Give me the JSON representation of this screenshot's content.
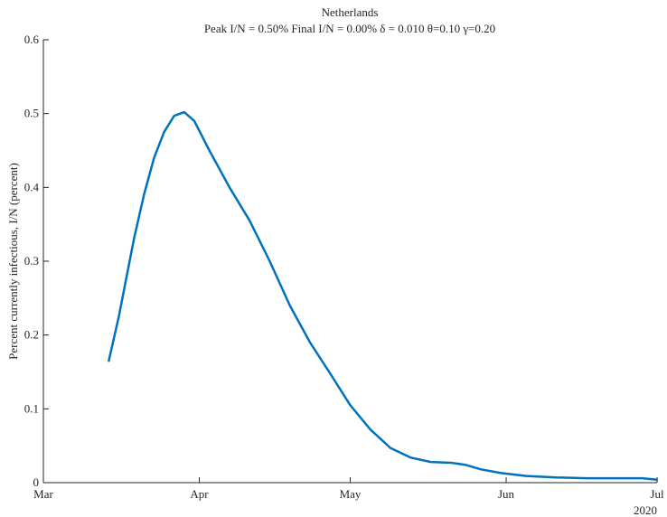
{
  "chart_data": {
    "type": "line",
    "title": "Netherlands",
    "subtitle": "Peak I/N =  0.50%   Final I/N =  0.00%   δ = 0.010  θ=0.10  γ=0.20",
    "y_label": "Percent currently infectious, I/N (percent)",
    "x_year_label": "2020",
    "x": [
      13,
      15,
      18,
      20,
      22,
      24,
      26,
      28,
      30,
      33,
      37,
      41,
      45,
      49,
      53,
      57,
      61,
      65,
      69,
      73,
      77,
      81,
      84,
      87,
      91,
      96,
      102,
      108,
      114,
      119,
      122
    ],
    "series": [
      {
        "name": "Netherlands",
        "color": "#0072bd",
        "values": [
          0.165,
          0.225,
          0.33,
          0.39,
          0.44,
          0.475,
          0.497,
          0.502,
          0.49,
          0.45,
          0.4,
          0.355,
          0.3,
          0.24,
          0.19,
          0.148,
          0.105,
          0.072,
          0.047,
          0.034,
          0.028,
          0.027,
          0.024,
          0.018,
          0.013,
          0.009,
          0.007,
          0.006,
          0.006,
          0.006,
          0.004
        ]
      }
    ],
    "xlim": [
      0,
      122
    ],
    "xticks": [
      {
        "value": 0,
        "label": "Mar"
      },
      {
        "value": 31,
        "label": "Apr"
      },
      {
        "value": 61,
        "label": "May"
      },
      {
        "value": 92,
        "label": "Jun"
      },
      {
        "value": 122,
        "label": "Jul"
      }
    ],
    "ylim": [
      0,
      0.6
    ],
    "yticks": [
      0,
      0.1,
      0.2,
      0.3,
      0.4,
      0.5,
      0.6
    ],
    "grid": false
  }
}
